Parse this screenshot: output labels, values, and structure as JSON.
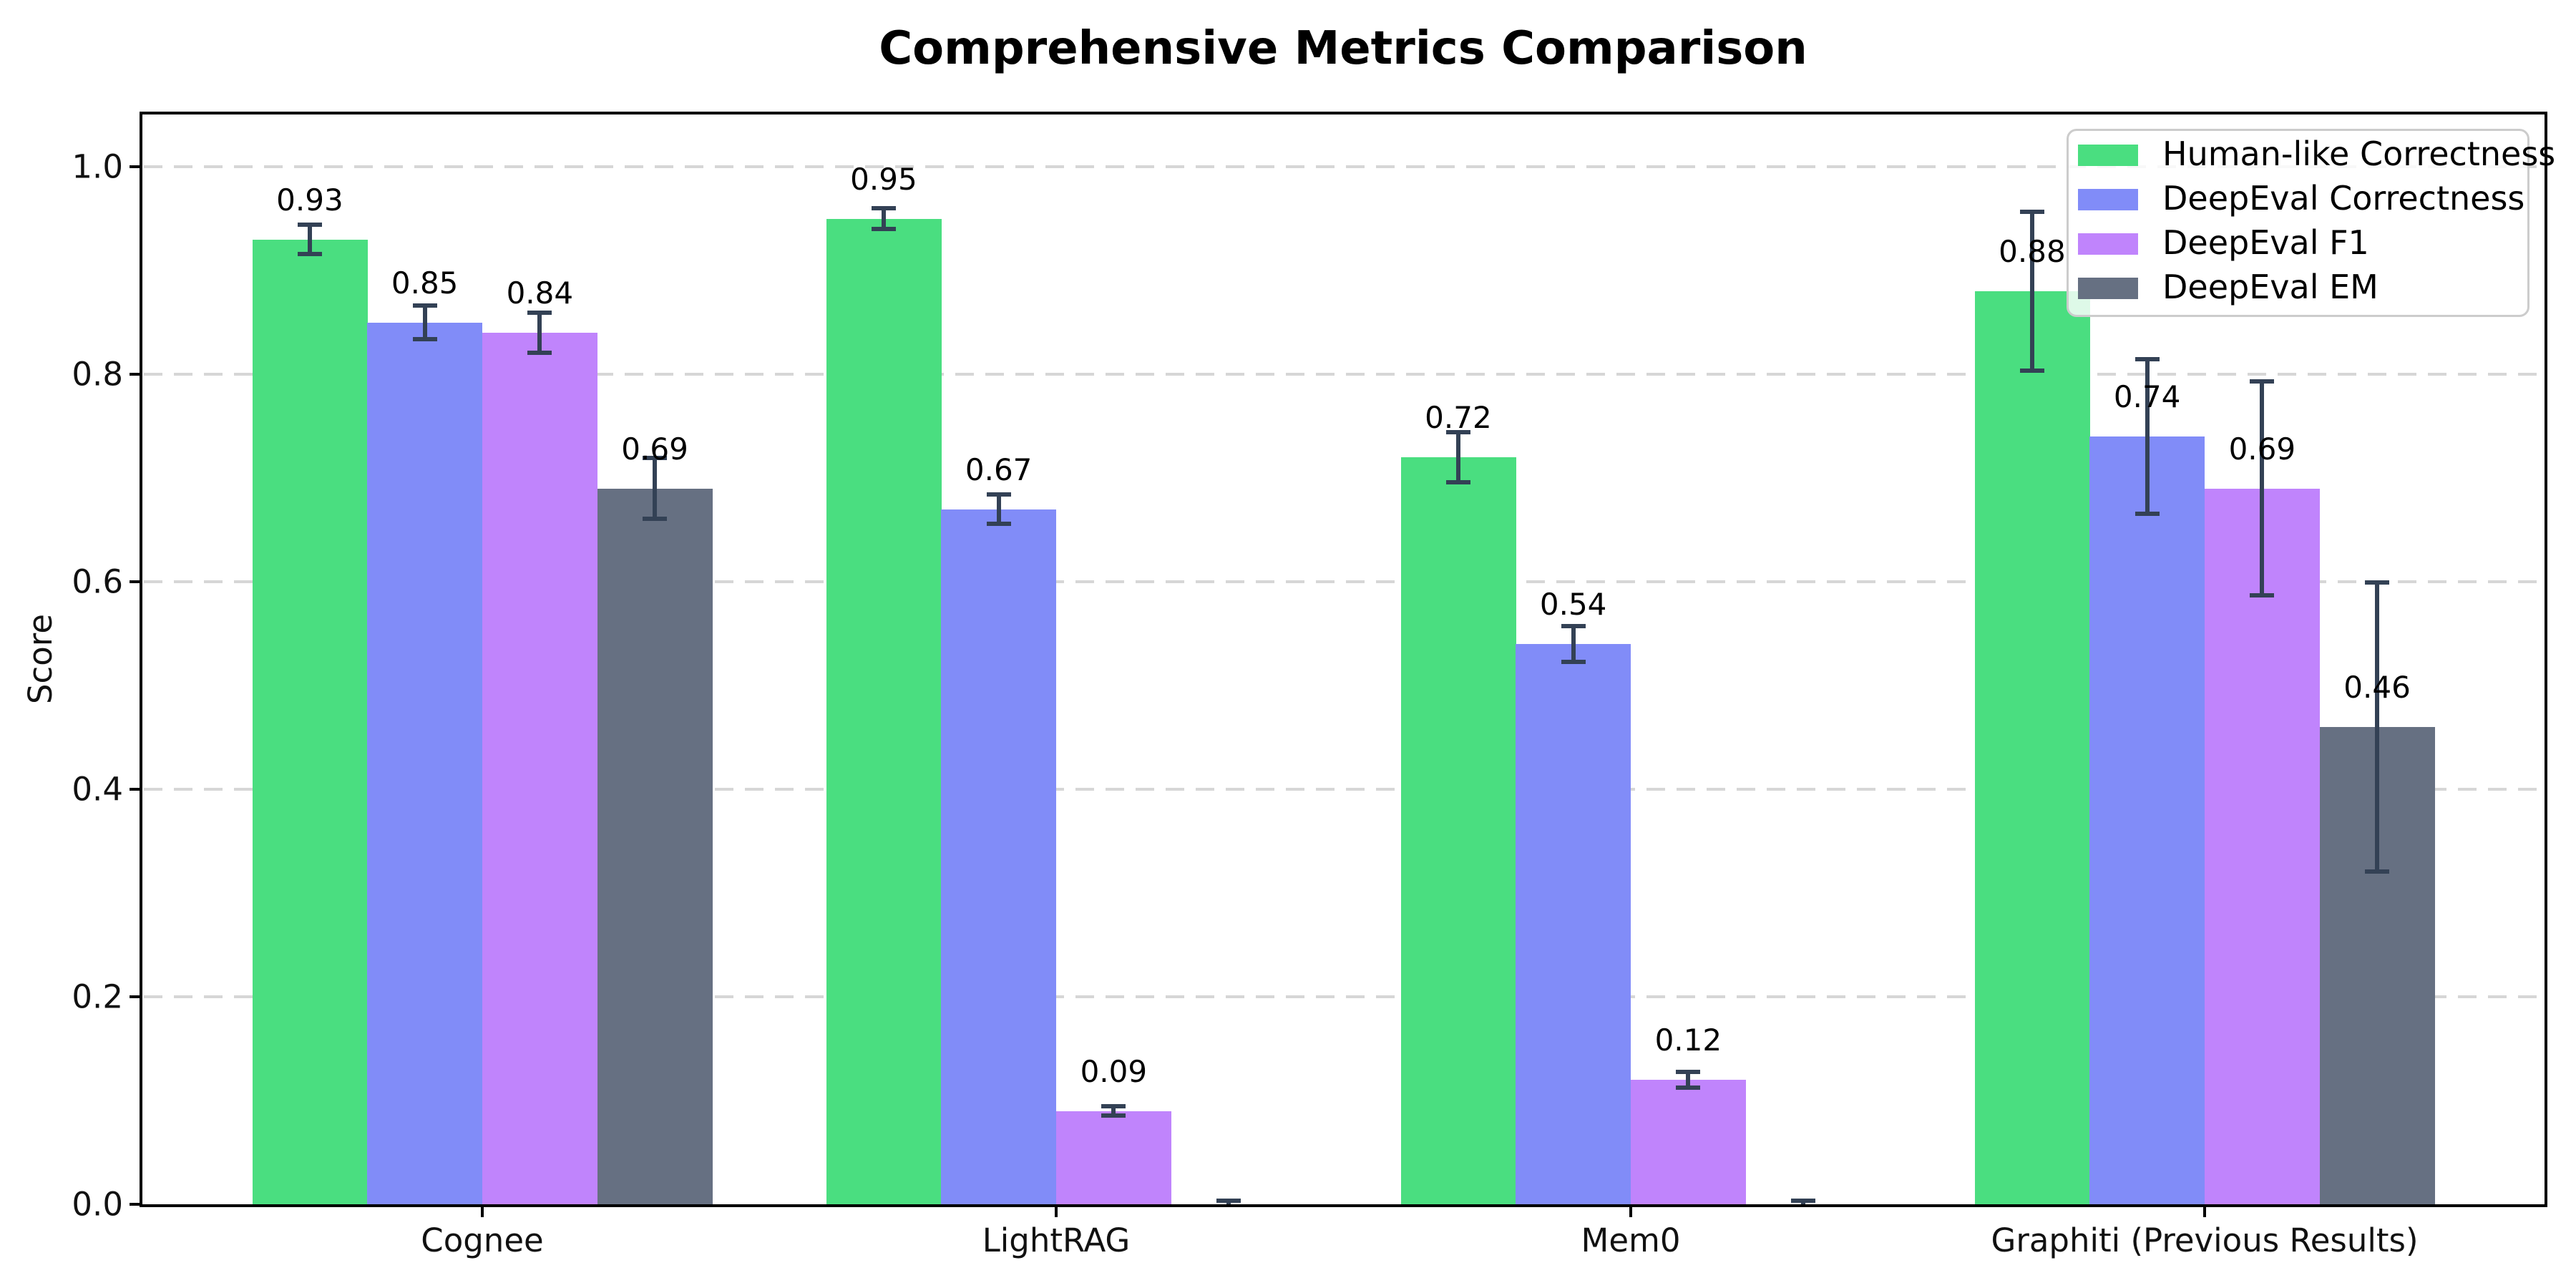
{
  "chart_data": {
    "type": "bar",
    "title": "Comprehensive Metrics Comparison",
    "ylabel": "Score",
    "xlabel": "",
    "categories": [
      "Cognee",
      "LightRAG",
      "Mem0",
      "Graphiti (Previous Results)"
    ],
    "series": [
      {
        "name": "Human-like Correctness",
        "color": "#4ade80",
        "values": [
          0.93,
          0.95,
          0.72,
          0.88
        ],
        "errors": [
          0.015,
          0.011,
          0.025,
          0.077
        ],
        "labels": [
          "0.93",
          "0.95",
          "0.72",
          "0.88"
        ]
      },
      {
        "name": "DeepEval Correctness",
        "color": "#818cf8",
        "values": [
          0.85,
          0.67,
          0.54,
          0.74
        ],
        "errors": [
          0.017,
          0.015,
          0.018,
          0.075
        ],
        "labels": [
          "0.85",
          "0.67",
          "0.54",
          "0.74"
        ]
      },
      {
        "name": "DeepEval F1",
        "color": "#c084fc",
        "values": [
          0.84,
          0.09,
          0.12,
          0.69
        ],
        "errors": [
          0.02,
          0.005,
          0.008,
          0.104
        ],
        "labels": [
          "0.84",
          "0.09",
          "0.12",
          "0.69"
        ]
      },
      {
        "name": "DeepEval EM",
        "color": "#667082",
        "values": [
          0.69,
          0.0,
          0.0,
          0.46
        ],
        "errors": [
          0.03,
          0.004,
          0.004,
          0.14
        ],
        "labels": [
          "0.69",
          "",
          "",
          "0.46"
        ]
      }
    ],
    "ylim": [
      0.0,
      1.05
    ],
    "yticks": [
      "0.0",
      "0.2",
      "0.4",
      "0.6",
      "0.8",
      "1.0"
    ],
    "ytick_values": [
      0.0,
      0.2,
      0.4,
      0.6,
      0.8,
      1.0
    ],
    "grid": true,
    "grid_style": "dashed",
    "grid_color": "#d6d6d6",
    "error_bar_color": "#334155",
    "legend_position": "upper right",
    "legend_entries": [
      "Human-like Correctness",
      "DeepEval Correctness",
      "DeepEval F1",
      "DeepEval EM"
    ],
    "background_color": "#ffffff"
  }
}
